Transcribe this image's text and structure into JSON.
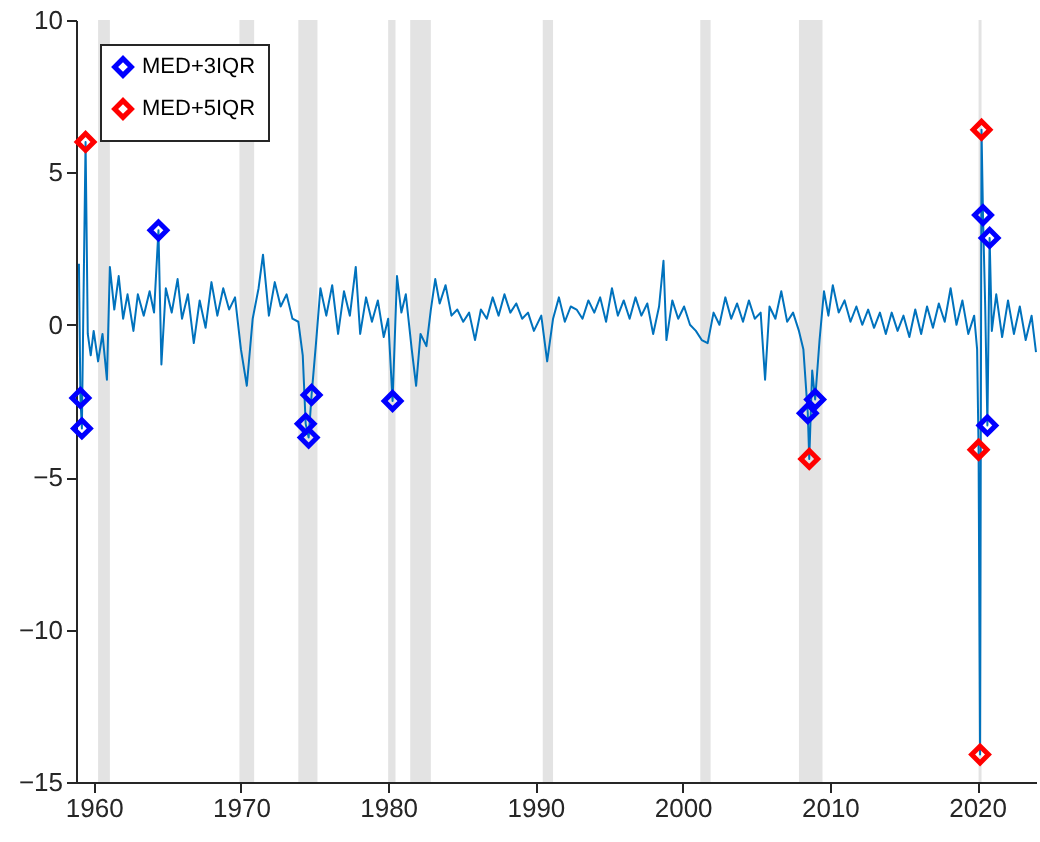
{
  "chart_data": {
    "type": "line",
    "xlim": [
      1958.8,
      2024
    ],
    "xticks": [
      1960,
      1970,
      1980,
      1990,
      2000,
      2010,
      2020
    ],
    "ylim": [
      -15,
      10
    ],
    "yticks": [
      -15,
      -10,
      -5,
      0,
      5,
      10
    ],
    "grid": false,
    "legend": "top left",
    "bands": [
      {
        "axis": "x",
        "from": 1960.3,
        "to": 1961.1,
        "color": "#e3e3e3"
      },
      {
        "axis": "x",
        "from": 1969.9,
        "to": 1970.9,
        "color": "#e3e3e3"
      },
      {
        "axis": "x",
        "from": 1973.9,
        "to": 1975.2,
        "color": "#e3e3e3"
      },
      {
        "axis": "x",
        "from": 1980.0,
        "to": 1980.5,
        "color": "#e3e3e3"
      },
      {
        "axis": "x",
        "from": 1981.5,
        "to": 1982.9,
        "color": "#e3e3e3"
      },
      {
        "axis": "x",
        "from": 1990.5,
        "to": 1991.2,
        "color": "#e3e3e3"
      },
      {
        "axis": "x",
        "from": 2001.2,
        "to": 2001.9,
        "color": "#e3e3e3"
      },
      {
        "axis": "x",
        "from": 2007.9,
        "to": 2009.5,
        "color": "#e3e3e3"
      },
      {
        "axis": "x",
        "from": 2020.1,
        "to": 2020.3,
        "color": "#e3e3e3"
      }
    ],
    "series": [
      {
        "color": "#0072bd",
        "line_style": "solid",
        "marker": "none",
        "x": [
          1959.0,
          1959.1,
          1959.2,
          1959.3,
          1959.45,
          1959.6,
          1959.8,
          1960.0,
          1960.3,
          1960.6,
          1960.9,
          1961.1,
          1961.4,
          1961.7,
          1962.0,
          1962.3,
          1962.7,
          1963.0,
          1963.4,
          1963.8,
          1964.1,
          1964.4,
          1964.6,
          1964.9,
          1965.3,
          1965.7,
          1966.0,
          1966.4,
          1966.8,
          1967.2,
          1967.6,
          1968.0,
          1968.4,
          1968.8,
          1969.2,
          1969.6,
          1970.0,
          1970.4,
          1970.8,
          1971.2,
          1971.5,
          1971.9,
          1972.3,
          1972.7,
          1973.1,
          1973.5,
          1973.9,
          1974.2,
          1974.4,
          1974.6,
          1974.8,
          1975.1,
          1975.4,
          1975.8,
          1976.2,
          1976.6,
          1977.0,
          1977.4,
          1977.8,
          1978.1,
          1978.5,
          1978.9,
          1979.3,
          1979.7,
          1980.0,
          1980.3,
          1980.6,
          1980.9,
          1981.2,
          1981.6,
          1981.9,
          1982.2,
          1982.6,
          1982.9,
          1983.2,
          1983.5,
          1983.9,
          1984.3,
          1984.7,
          1985.1,
          1985.5,
          1985.9,
          1986.3,
          1986.7,
          1987.1,
          1987.5,
          1987.9,
          1988.3,
          1988.7,
          1989.1,
          1989.5,
          1989.9,
          1990.4,
          1990.8,
          1991.2,
          1991.6,
          1992.0,
          1992.4,
          1992.8,
          1993.2,
          1993.6,
          1994.0,
          1994.4,
          1994.8,
          1995.2,
          1995.6,
          1996.0,
          1996.4,
          1996.8,
          1997.2,
          1997.6,
          1998.0,
          1998.4,
          1998.7,
          1998.9,
          1999.3,
          1999.7,
          2000.1,
          2000.5,
          2000.9,
          2001.3,
          2001.7,
          2002.1,
          2002.5,
          2002.9,
          2003.3,
          2003.7,
          2004.1,
          2004.5,
          2004.9,
          2005.3,
          2005.6,
          2005.9,
          2006.3,
          2006.7,
          2007.1,
          2007.5,
          2007.9,
          2008.2,
          2008.5,
          2008.6,
          2008.8,
          2009.0,
          2009.3,
          2009.6,
          2009.9,
          2010.2,
          2010.6,
          2011.0,
          2011.4,
          2011.8,
          2012.2,
          2012.6,
          2013.0,
          2013.4,
          2013.8,
          2014.2,
          2014.6,
          2015.0,
          2015.4,
          2015.8,
          2016.2,
          2016.6,
          2017.0,
          2017.4,
          2017.8,
          2018.2,
          2018.6,
          2019.0,
          2019.4,
          2019.8,
          2020.0,
          2020.1,
          2020.2,
          2020.3,
          2020.4,
          2020.55,
          2020.7,
          2020.85,
          2021.0,
          2021.3,
          2021.7,
          2022.1,
          2022.5,
          2022.9,
          2023.3,
          2023.7,
          2024.0
        ],
        "values": [
          2.0,
          -2.4,
          -3.4,
          0.5,
          6.0,
          -0.3,
          -1.0,
          -0.2,
          -1.2,
          -0.3,
          -1.8,
          1.9,
          0.5,
          1.6,
          0.2,
          1.0,
          -0.2,
          1.0,
          0.3,
          1.1,
          0.4,
          3.1,
          -1.3,
          1.2,
          0.4,
          1.5,
          0.2,
          1.0,
          -0.6,
          0.8,
          -0.1,
          1.4,
          0.3,
          1.2,
          0.5,
          0.9,
          -0.8,
          -2.0,
          0.2,
          1.2,
          2.3,
          0.3,
          1.4,
          0.6,
          1.0,
          0.2,
          0.1,
          -1.0,
          -3.25,
          -3.7,
          -2.3,
          -0.6,
          1.2,
          0.3,
          1.3,
          -0.3,
          1.1,
          0.3,
          1.9,
          -0.3,
          0.9,
          0.1,
          0.8,
          -0.4,
          0.2,
          -2.5,
          1.6,
          0.4,
          1.0,
          -0.8,
          -2.0,
          -0.3,
          -0.7,
          0.5,
          1.5,
          0.7,
          1.3,
          0.3,
          0.5,
          0.1,
          0.4,
          -0.5,
          0.5,
          0.2,
          0.9,
          0.3,
          1.0,
          0.4,
          0.7,
          0.2,
          0.4,
          -0.2,
          0.3,
          -1.2,
          0.2,
          0.9,
          0.1,
          0.6,
          0.5,
          0.2,
          0.8,
          0.4,
          0.9,
          0.1,
          1.2,
          0.3,
          0.8,
          0.2,
          0.9,
          0.3,
          0.7,
          -0.3,
          0.6,
          2.1,
          -0.5,
          0.8,
          0.2,
          0.6,
          0.0,
          -0.2,
          -0.5,
          -0.6,
          0.4,
          0.0,
          0.9,
          0.2,
          0.7,
          0.1,
          0.8,
          0.2,
          0.4,
          -1.8,
          0.6,
          0.2,
          1.1,
          0.1,
          0.4,
          -0.2,
          -0.8,
          -2.9,
          -4.4,
          -1.5,
          -2.45,
          -0.5,
          1.1,
          0.3,
          1.3,
          0.4,
          0.8,
          0.1,
          0.6,
          0.0,
          0.5,
          -0.1,
          0.4,
          -0.3,
          0.4,
          -0.2,
          0.3,
          -0.4,
          0.5,
          -0.3,
          0.6,
          -0.1,
          0.7,
          0.1,
          1.2,
          0.0,
          0.8,
          -0.3,
          0.3,
          -0.8,
          -4.1,
          -14.1,
          6.4,
          3.6,
          0.6,
          -3.3,
          2.85,
          -0.2,
          1.0,
          -0.4,
          0.8,
          -0.3,
          0.6,
          -0.5,
          0.3,
          -0.9
        ]
      },
      {
        "type": "scatter",
        "name": "MED+3IQR",
        "color": "#0000ff",
        "marker": "diamond",
        "x": [
          1959.1,
          1959.2,
          1964.4,
          1974.4,
          1974.6,
          1974.8,
          1980.3,
          2008.5,
          2009.0,
          2020.4,
          2020.85,
          2020.7
        ],
        "values": [
          -2.4,
          -3.4,
          3.1,
          -3.25,
          -3.7,
          -2.3,
          -2.5,
          -2.9,
          -2.45,
          3.6,
          2.85,
          -3.3
        ]
      },
      {
        "type": "scatter",
        "name": "MED+5IQR",
        "color": "#ff0000",
        "marker": "diamond",
        "x": [
          1959.45,
          2008.6,
          2020.1,
          2020.2,
          2020.3
        ],
        "values": [
          6.0,
          -4.4,
          -4.1,
          -14.1,
          6.4
        ]
      }
    ]
  }
}
